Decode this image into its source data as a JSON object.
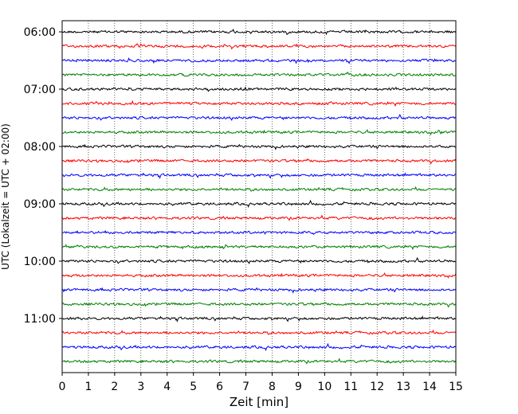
{
  "chart_data": {
    "type": "line",
    "title": "",
    "xlabel": "Zeit  [min]",
    "ylabel": "UTC (Lokalzeit = UTC + 02:00)",
    "xlim": [
      0,
      15
    ],
    "x_ticks": [
      "0",
      "1",
      "2",
      "3",
      "4",
      "5",
      "6",
      "7",
      "8",
      "9",
      "10",
      "11",
      "12",
      "13",
      "14",
      "15"
    ],
    "y_ticks": [
      "06:00",
      "07:00",
      "08:00",
      "09:00",
      "10:00",
      "11:00"
    ],
    "ylim_time": [
      "06:00",
      "12:00"
    ],
    "trace_interval": "00:15",
    "grid": "vertical dotted",
    "series_colors": [
      "#000000",
      "#ff0000",
      "#0000ff",
      "#008000"
    ],
    "traces": [
      {
        "start": "06:00",
        "color": "#000000"
      },
      {
        "start": "06:15",
        "color": "#ff0000"
      },
      {
        "start": "06:30",
        "color": "#0000ff"
      },
      {
        "start": "06:45",
        "color": "#008000"
      },
      {
        "start": "07:00",
        "color": "#000000"
      },
      {
        "start": "07:15",
        "color": "#ff0000"
      },
      {
        "start": "07:30",
        "color": "#0000ff"
      },
      {
        "start": "07:45",
        "color": "#008000"
      },
      {
        "start": "08:00",
        "color": "#000000"
      },
      {
        "start": "08:15",
        "color": "#ff0000"
      },
      {
        "start": "08:30",
        "color": "#0000ff"
      },
      {
        "start": "08:45",
        "color": "#008000"
      },
      {
        "start": "09:00",
        "color": "#000000"
      },
      {
        "start": "09:15",
        "color": "#ff0000"
      },
      {
        "start": "09:30",
        "color": "#0000ff"
      },
      {
        "start": "09:45",
        "color": "#008000"
      },
      {
        "start": "10:00",
        "color": "#000000"
      },
      {
        "start": "10:15",
        "color": "#ff0000"
      },
      {
        "start": "10:30",
        "color": "#0000ff"
      },
      {
        "start": "10:45",
        "color": "#008000"
      },
      {
        "start": "11:00",
        "color": "#000000"
      },
      {
        "start": "11:15",
        "color": "#ff0000"
      },
      {
        "start": "11:30",
        "color": "#0000ff"
      },
      {
        "start": "11:45",
        "color": "#008000"
      }
    ]
  }
}
